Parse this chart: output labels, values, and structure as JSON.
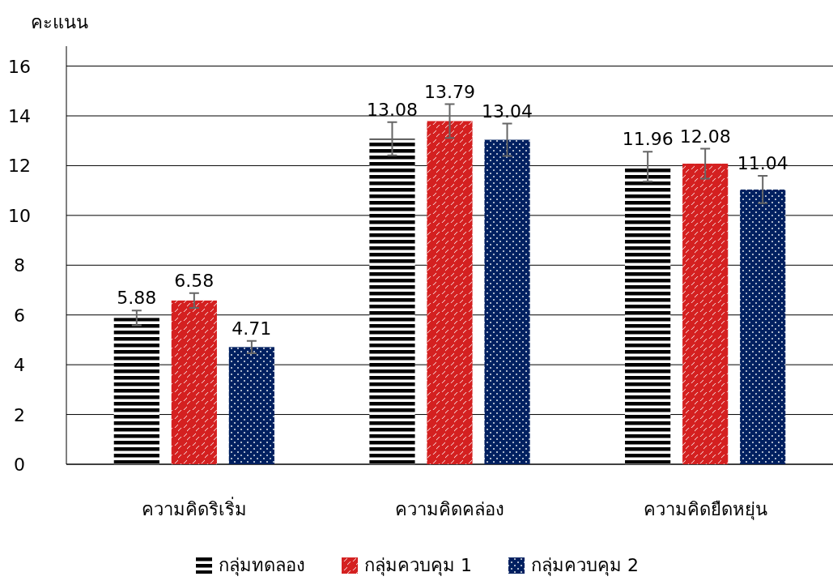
{
  "chart_data": {
    "type": "bar",
    "ylabel": "คะแนน",
    "categories": [
      "ความคิดริเริ่ม",
      "ความคิดคล่อง",
      "ความคิดยืดหยุ่น"
    ],
    "series": [
      {
        "name": "กลุ่มทดลอง",
        "color": "#000000",
        "values": [
          5.88,
          13.08,
          11.96
        ],
        "errors": [
          0.3,
          0.67,
          0.6
        ]
      },
      {
        "name": "กลุ่มควบคุม 1",
        "color": "#d42020",
        "values": [
          6.58,
          13.79,
          12.08
        ],
        "errors": [
          0.3,
          0.68,
          0.6
        ]
      },
      {
        "name": "กลุ่มควบคุม 2",
        "color": "#002060",
        "values": [
          4.71,
          13.04,
          11.04
        ],
        "errors": [
          0.25,
          0.65,
          0.55
        ]
      }
    ],
    "ylim": [
      0,
      16.8
    ],
    "yticks": [
      0,
      2,
      4,
      6,
      8,
      10,
      12,
      14,
      16
    ],
    "grid": "y",
    "legend": "bottom",
    "data_labels": true
  }
}
